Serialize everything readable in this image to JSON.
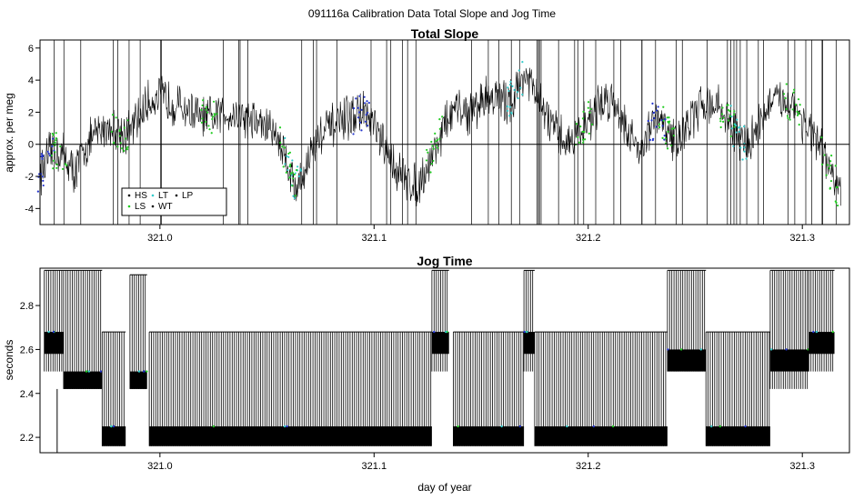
{
  "figure": {
    "title": "091116a   Calibration Data Total Slope and Jog Time",
    "xlabel": "day of year"
  },
  "chart_data": [
    {
      "type": "line",
      "title": "Total Slope",
      "ylabel": "approx. per meg",
      "xlim": [
        320.944,
        321.322
      ],
      "ylim": [
        -5.0,
        6.5
      ],
      "xticks": [
        "321.0",
        "321.1",
        "321.2",
        "321.3"
      ],
      "xtick_values": [
        321.0,
        321.1,
        321.2,
        321.3
      ],
      "yticks": [
        "-4",
        "-2",
        "0",
        "2",
        "4",
        "6"
      ],
      "ytick_values": [
        -4,
        -2,
        0,
        2,
        4,
        6
      ],
      "hline": 0,
      "legend": {
        "position": "bottom-left",
        "entries": [
          {
            "label": "HS",
            "color": "#000000"
          },
          {
            "label": "LS",
            "color": "#22cc22"
          },
          {
            "label": "LT",
            "color": "#33cccc"
          },
          {
            "label": "WT",
            "color": "#000000"
          },
          {
            "label": "LP",
            "color": "#000000"
          }
        ]
      },
      "series": [
        {
          "name": "Total Slope",
          "color": "#000000",
          "x": [
            320.944,
            320.95,
            320.955,
            320.96,
            320.965,
            320.97,
            320.975,
            320.98,
            320.985,
            320.99,
            320.995,
            321.0,
            321.005,
            321.01,
            321.015,
            321.02,
            321.025,
            321.03,
            321.035,
            321.04,
            321.045,
            321.05,
            321.055,
            321.06,
            321.063,
            321.066,
            321.07,
            321.075,
            321.08,
            321.085,
            321.09,
            321.095,
            321.1,
            321.105,
            321.11,
            321.115,
            321.12,
            321.125,
            321.13,
            321.135,
            321.14,
            321.145,
            321.15,
            321.155,
            321.16,
            321.165,
            321.17,
            321.175,
            321.18,
            321.185,
            321.19,
            321.195,
            321.2,
            321.205,
            321.21,
            321.215,
            321.22,
            321.225,
            321.23,
            321.235,
            321.24,
            321.245,
            321.25,
            321.255,
            321.26,
            321.265,
            321.27,
            321.275,
            321.28,
            321.285,
            321.29,
            321.295,
            321.3,
            321.305,
            321.31,
            321.315,
            321.318
          ],
          "y": [
            -1.8,
            -0.3,
            -0.6,
            -1.8,
            -0.2,
            0.6,
            1.1,
            1.0,
            0.6,
            1.6,
            2.7,
            3.0,
            2.7,
            2.3,
            2.0,
            1.6,
            1.6,
            2.0,
            1.9,
            1.7,
            1.4,
            1.1,
            0.5,
            -1.3,
            -2.7,
            -2.3,
            -0.6,
            0.6,
            1.1,
            1.4,
            1.8,
            2.0,
            1.1,
            -0.4,
            -1.4,
            -2.2,
            -2.6,
            -1.4,
            0.3,
            1.7,
            2.2,
            1.9,
            2.7,
            3.1,
            2.6,
            2.9,
            4.4,
            3.2,
            1.9,
            0.6,
            0.2,
            0.6,
            1.5,
            2.4,
            2.9,
            2.0,
            0.3,
            -0.2,
            1.4,
            1.3,
            0.2,
            0.9,
            1.9,
            2.7,
            2.4,
            1.7,
            0.4,
            0.0,
            1.4,
            2.5,
            2.7,
            2.7,
            1.6,
            0.4,
            -0.7,
            -2.2,
            -3.3
          ]
        }
      ]
    },
    {
      "type": "line",
      "title": "Jog Time",
      "ylabel": "seconds",
      "xlim": [
        320.944,
        321.322
      ],
      "ylim": [
        2.13,
        2.97
      ],
      "xticks": [
        "321.0",
        "321.1",
        "321.2",
        "321.3"
      ],
      "xtick_values": [
        321.0,
        321.1,
        321.2,
        321.3
      ],
      "yticks": [
        "2.2",
        "2.4",
        "2.6",
        "2.8"
      ],
      "ytick_values": [
        2.2,
        2.4,
        2.6,
        2.8
      ],
      "series": [
        {
          "name": "Jog Time",
          "color": "#000000",
          "segments": [
            {
              "x0": 320.946,
              "x1": 320.955,
              "low": 2.5,
              "high": 2.96,
              "band": [
                2.58,
                2.68
              ]
            },
            {
              "x0": 320.955,
              "x1": 320.973,
              "low": 2.42,
              "high": 2.96,
              "band": [
                2.42,
                2.5
              ]
            },
            {
              "x0": 320.973,
              "x1": 320.984,
              "low": 2.16,
              "high": 2.68,
              "band": [
                2.16,
                2.25
              ]
            },
            {
              "x0": 320.986,
              "x1": 320.994,
              "low": 2.42,
              "high": 2.94,
              "band": [
                2.42,
                2.5
              ]
            },
            {
              "x0": 320.995,
              "x1": 321.127,
              "low": 2.16,
              "high": 2.68,
              "band": [
                2.16,
                2.25
              ]
            },
            {
              "x0": 321.127,
              "x1": 321.135,
              "low": 2.5,
              "high": 2.96,
              "band": [
                2.58,
                2.68
              ]
            },
            {
              "x0": 321.137,
              "x1": 321.17,
              "low": 2.16,
              "high": 2.68,
              "band": [
                2.16,
                2.25
              ]
            },
            {
              "x0": 321.17,
              "x1": 321.175,
              "low": 2.5,
              "high": 2.96,
              "band": [
                2.58,
                2.68
              ]
            },
            {
              "x0": 321.175,
              "x1": 321.237,
              "low": 2.16,
              "high": 2.68,
              "band": [
                2.16,
                2.25
              ]
            },
            {
              "x0": 321.237,
              "x1": 321.255,
              "low": 2.5,
              "high": 2.96,
              "band": [
                2.5,
                2.6
              ]
            },
            {
              "x0": 321.255,
              "x1": 321.285,
              "low": 2.16,
              "high": 2.68,
              "band": [
                2.16,
                2.25
              ]
            },
            {
              "x0": 321.285,
              "x1": 321.303,
              "low": 2.42,
              "high": 2.96,
              "band": [
                2.5,
                2.6
              ]
            },
            {
              "x0": 321.303,
              "x1": 321.315,
              "low": 2.5,
              "high": 2.96,
              "band": [
                2.58,
                2.68
              ]
            }
          ]
        }
      ]
    }
  ]
}
